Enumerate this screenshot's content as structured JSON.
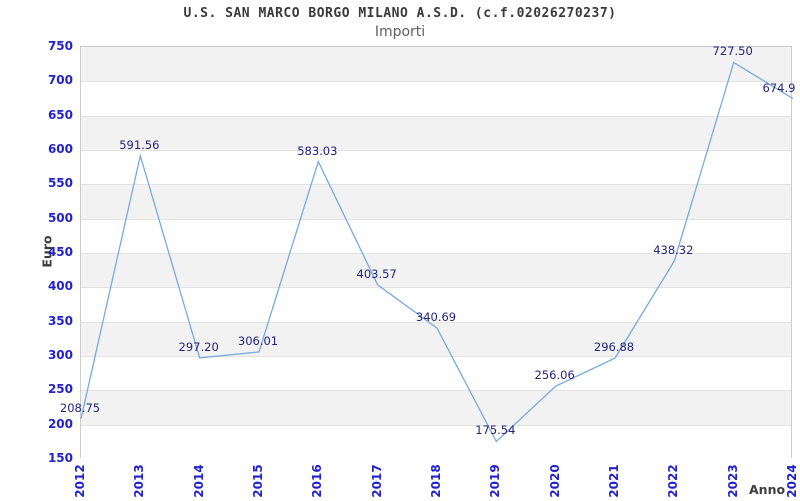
{
  "header": {
    "title": "U.S. SAN MARCO BORGO MILANO A.S.D. (c.f.02026270237)",
    "subtitle": "Importi"
  },
  "axes": {
    "y_label": "Euro",
    "x_label": "Anno"
  },
  "chart_data": {
    "type": "line",
    "title": "U.S. SAN MARCO BORGO MILANO A.S.D. (c.f.02026270237)",
    "subtitle": "Importi",
    "xlabel": "Anno",
    "ylabel": "Euro",
    "categories": [
      "2012",
      "2013",
      "2014",
      "2015",
      "2016",
      "2017",
      "2018",
      "2019",
      "2020",
      "2021",
      "2022",
      "2023",
      "2024"
    ],
    "values": [
      208.75,
      591.56,
      297.2,
      306.01,
      583.03,
      403.57,
      340.69,
      175.54,
      256.06,
      296.88,
      438.32,
      727.5,
      674.9
    ],
    "point_labels": [
      "208.75",
      "591.56",
      "297.20",
      "306.01",
      "583.03",
      "403.57",
      "340.69",
      "175.54",
      "256.06",
      "296.88",
      "438.32",
      "727.50",
      "674.9"
    ],
    "ylim": [
      150,
      750
    ],
    "ytick_step": 50,
    "yticks": [
      750,
      700,
      650,
      600,
      550,
      500,
      450,
      400,
      350,
      300,
      250,
      200,
      150
    ],
    "legend": "none",
    "grid": "alternating-horizontal-bands",
    "band_color": "#f2f2f2",
    "gridline_color": "#e3e3e3",
    "plot_border_color": "#cccccc",
    "line_color": "#76abdf",
    "tick_label_color": "#2222cc",
    "point_label_color": "#24247c"
  },
  "colors": {
    "background": "#ffffff",
    "title": "#3a3a3a",
    "subtitle": "#5f5f5f",
    "axis_name": "#3d3d3d"
  }
}
